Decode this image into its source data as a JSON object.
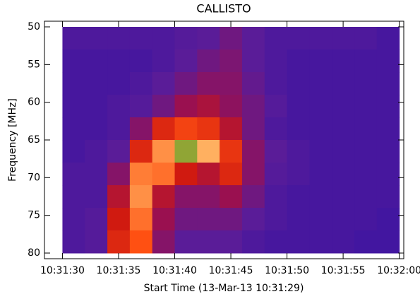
{
  "chart_data": {
    "type": "heatmap",
    "title": "CALLISTO",
    "x_label": "Start Time (13-Mar-13 10:31:29)",
    "y_label": "Frequency [MHz]",
    "xlim": [
      37888.4,
      37920.4
    ],
    "ylim": [
      80.75,
      49.25
    ],
    "xticks": [
      {
        "value": 37890,
        "label": "10:31:30"
      },
      {
        "value": 37895,
        "label": "10:31:35"
      },
      {
        "value": 37900,
        "label": "10:31:40"
      },
      {
        "value": 37905,
        "label": "10:31:45"
      },
      {
        "value": 37910,
        "label": "10:31:50"
      },
      {
        "value": 37915,
        "label": "10:31:55"
      },
      {
        "value": 37920,
        "label": "10:32:00"
      }
    ],
    "yticks": [
      50,
      55,
      60,
      65,
      70,
      75,
      80
    ],
    "x_edges": [
      37890,
      37892,
      37894,
      37896,
      37898,
      37900,
      37902,
      37904,
      37906,
      37908,
      37910,
      37912,
      37914,
      37916,
      37918,
      37920
    ],
    "y_edges": [
      50,
      53,
      56,
      59,
      62,
      65,
      68,
      71,
      74,
      77,
      80
    ],
    "values": [
      [
        15,
        15,
        15,
        15,
        15,
        18,
        20,
        25,
        20,
        15,
        15,
        15,
        15,
        15,
        12
      ],
      [
        12,
        12,
        12,
        12,
        15,
        20,
        25,
        28,
        20,
        15,
        12,
        12,
        12,
        12,
        12
      ],
      [
        12,
        12,
        12,
        15,
        20,
        25,
        30,
        30,
        22,
        15,
        12,
        12,
        12,
        12,
        12
      ],
      [
        12,
        12,
        15,
        18,
        25,
        35,
        38,
        32,
        25,
        18,
        12,
        12,
        12,
        12,
        12
      ],
      [
        12,
        12,
        15,
        30,
        50,
        60,
        55,
        40,
        25,
        15,
        12,
        12,
        12,
        12,
        12
      ],
      [
        12,
        15,
        20,
        50,
        75,
        90,
        80,
        55,
        30,
        20,
        15,
        12,
        12,
        12,
        12
      ],
      [
        15,
        15,
        30,
        72,
        70,
        45,
        40,
        50,
        30,
        18,
        15,
        12,
        12,
        12,
        12
      ],
      [
        15,
        15,
        40,
        75,
        40,
        30,
        30,
        35,
        25,
        15,
        12,
        12,
        12,
        12,
        12
      ],
      [
        15,
        18,
        45,
        70,
        35,
        25,
        25,
        25,
        20,
        15,
        12,
        12,
        12,
        12,
        10
      ],
      [
        15,
        18,
        50,
        65,
        30,
        20,
        20,
        20,
        15,
        12,
        12,
        12,
        12,
        10,
        10
      ]
    ],
    "colorscale": [
      [
        0,
        "#2a10a8"
      ],
      [
        20,
        "#5a1c98"
      ],
      [
        35,
        "#9a1050"
      ],
      [
        45,
        "#d01a10"
      ],
      [
        65,
        "#ff5012"
      ],
      [
        80,
        "#ffb060"
      ],
      [
        95,
        "#58a020"
      ]
    ]
  }
}
